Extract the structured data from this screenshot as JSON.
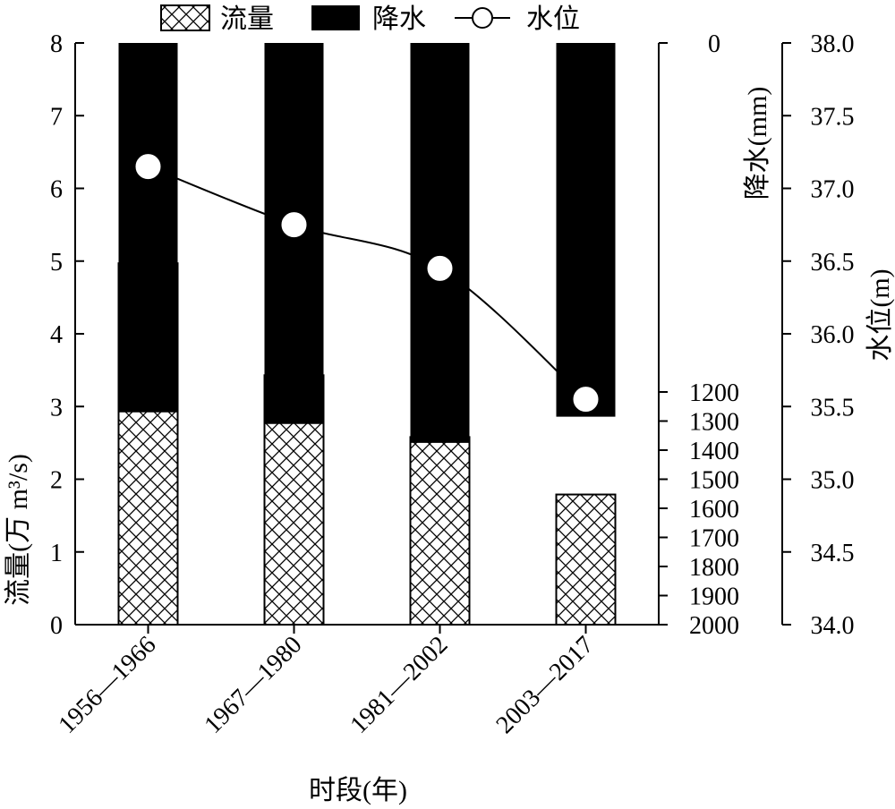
{
  "chart_data": {
    "type": "bar",
    "categories": [
      "1956—1966",
      "1967—1980",
      "1981—2002",
      "2003—2017"
    ],
    "xlabel": "时段(年)",
    "series": [
      {
        "name": "流量",
        "kind": "bar",
        "axis": "left",
        "pattern": "crosshatch",
        "values": [
          4.97,
          3.43,
          2.58,
          1.79
        ]
      },
      {
        "name": "降水",
        "kind": "bar",
        "axis": "middle",
        "inverted": true,
        "color": "#000000",
        "values": [
          1270,
          1310,
          1375,
          1285
        ]
      },
      {
        "name": "水位",
        "kind": "line",
        "axis": "right",
        "marker": "open-circle",
        "values": [
          37.15,
          36.75,
          36.45,
          35.55
        ]
      }
    ],
    "axes": {
      "left": {
        "label": "流量(万 m³/s)",
        "ylim": [
          0,
          8
        ],
        "ticks": [
          "0",
          "1",
          "2",
          "3",
          "4",
          "5",
          "6",
          "7",
          "8"
        ]
      },
      "middle": {
        "label": "降水(mm)",
        "ylim": [
          2000,
          0
        ],
        "ticks": [
          "0",
          "1200",
          "1300",
          "1400",
          "1500",
          "1600",
          "1700",
          "1800",
          "1900",
          "2000"
        ],
        "tick_values": [
          0,
          1200,
          1300,
          1400,
          1500,
          1600,
          1700,
          1800,
          1900,
          2000
        ]
      },
      "right": {
        "label": "水位(m)",
        "ylim": [
          34.0,
          38.0
        ],
        "ticks": [
          "34.0",
          "34.5",
          "35.0",
          "35.5",
          "36.0",
          "36.5",
          "37.0",
          "37.5",
          "38.0"
        ]
      }
    },
    "legend": {
      "position": "top",
      "items": [
        "流量",
        "降水",
        "水位"
      ]
    },
    "grid": false
  }
}
